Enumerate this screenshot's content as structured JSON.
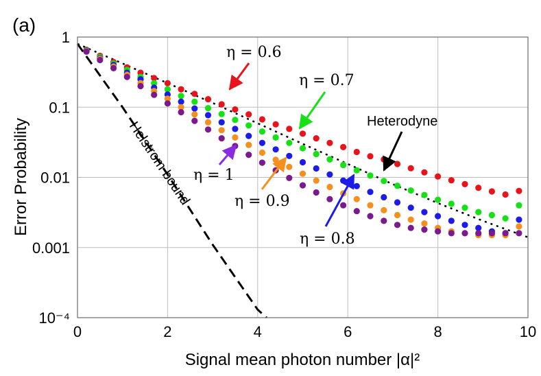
{
  "chart_data": {
    "type": "scatter",
    "panel_label": "(a)",
    "title": "",
    "xlabel": "Signal mean photon number |α|²",
    "ylabel": "Error Probability",
    "xlim": [
      0,
      10
    ],
    "ylim": [
      0.0001,
      1
    ],
    "yscale": "log",
    "grid": true,
    "x_ticks": [
      "0",
      "2",
      "4",
      "6",
      "8",
      "10"
    ],
    "y_ticks": [
      "1",
      "0.1",
      "0.01",
      "0.001",
      "10⁻⁴"
    ],
    "x": [
      0.2,
      0.5,
      0.8,
      1.1,
      1.4,
      1.7,
      2.0,
      2.3,
      2.6,
      2.9,
      3.2,
      3.5,
      3.8,
      4.1,
      4.4,
      4.7,
      5.0,
      5.3,
      5.6,
      5.9,
      6.2,
      6.5,
      6.8,
      7.1,
      7.4,
      7.7,
      8.0,
      8.3,
      8.6,
      8.9,
      9.2,
      9.5,
      9.8
    ],
    "series": [
      {
        "name": "η = 0.6",
        "color": "#e8141b",
        "values": [
          0.66,
          0.54,
          0.44,
          0.37,
          0.31,
          0.26,
          0.22,
          0.18,
          0.155,
          0.13,
          0.11,
          0.093,
          0.079,
          0.067,
          0.057,
          0.049,
          0.042,
          0.036,
          0.031,
          0.027,
          0.023,
          0.02,
          0.018,
          0.0155,
          0.0135,
          0.0118,
          0.0103,
          0.0091,
          0.008,
          0.0071,
          0.0063,
          0.0057,
          0.0064
        ]
      },
      {
        "name": "η = 0.7",
        "color": "#16e016",
        "values": [
          0.65,
          0.52,
          0.42,
          0.34,
          0.27,
          0.22,
          0.18,
          0.145,
          0.12,
          0.097,
          0.08,
          0.066,
          0.055,
          0.045,
          0.037,
          0.031,
          0.026,
          0.0215,
          0.018,
          0.015,
          0.0126,
          0.0106,
          0.0089,
          0.0076,
          0.0065,
          0.0056,
          0.0048,
          0.0042,
          0.0037,
          0.0032,
          0.0029,
          0.0026,
          0.004
        ]
      },
      {
        "name": "η = 0.8",
        "color": "#1c1ce6",
        "values": [
          0.64,
          0.5,
          0.4,
          0.31,
          0.25,
          0.19,
          0.152,
          0.12,
          0.096,
          0.077,
          0.061,
          0.049,
          0.039,
          0.031,
          0.025,
          0.0202,
          0.0164,
          0.0134,
          0.011,
          0.009,
          0.0075,
          0.0062,
          0.0052,
          0.0044,
          0.0037,
          0.0032,
          0.0028,
          0.0024,
          0.0021,
          0.0019,
          0.0017,
          0.0016,
          0.0025
        ]
      },
      {
        "name": "η = 0.9",
        "color": "#f5901e",
        "values": [
          0.63,
          0.49,
          0.38,
          0.29,
          0.22,
          0.17,
          0.132,
          0.1,
          0.079,
          0.061,
          0.047,
          0.037,
          0.029,
          0.0225,
          0.0178,
          0.0141,
          0.0113,
          0.009,
          0.0073,
          0.0059,
          0.0049,
          0.004,
          0.0034,
          0.0029,
          0.0025,
          0.0022,
          0.0019,
          0.0017,
          0.0016,
          0.0015,
          0.0015,
          0.0015,
          0.002
        ]
      },
      {
        "name": "η = 1",
        "color": "#7a1a8e",
        "values": [
          0.62,
          0.47,
          0.36,
          0.27,
          0.2,
          0.15,
          0.113,
          0.085,
          0.064,
          0.048,
          0.036,
          0.028,
          0.021,
          0.0162,
          0.0126,
          0.0098,
          0.0077,
          0.0061,
          0.0049,
          0.004,
          0.0033,
          0.0028,
          0.0024,
          0.0021,
          0.0019,
          0.0018,
          0.0017,
          0.0016,
          0.0016,
          0.0016,
          0.0016,
          0.0016,
          0.0016
        ]
      }
    ],
    "reference_curves": [
      {
        "name": "Heterodyne",
        "style": "dotted",
        "color": "#000000",
        "x": [
          0,
          1,
          2,
          3,
          4,
          5,
          6,
          7,
          8,
          9,
          10
        ],
        "y": [
          0.8,
          0.42,
          0.22,
          0.115,
          0.059,
          0.03,
          0.0155,
          0.008,
          0.0043,
          0.0024,
          0.0014
        ]
      },
      {
        "name": "Helstrom bound",
        "style": "dashed",
        "color": "#000000",
        "x": [
          0,
          1,
          2,
          3,
          4,
          4.2
        ],
        "y": [
          0.8,
          0.1,
          0.011,
          0.0011,
          0.00013,
          0.0001
        ]
      }
    ],
    "annotations": [
      {
        "text": "η = 0.6",
        "arrow_color": "#e8141b"
      },
      {
        "text": "η = 0.7",
        "arrow_color": "#16e016"
      },
      {
        "text": "Heterodyne",
        "arrow_color": "#000000"
      },
      {
        "text": "η = 1",
        "arrow_color": "#8a2be2"
      },
      {
        "text": "η = 0.9",
        "arrow_color": "#f5901e"
      },
      {
        "text": "η = 0.8",
        "arrow_color": "#1c1ce6"
      },
      {
        "text": "Helstrom bound",
        "arrow_color": ""
      }
    ]
  }
}
